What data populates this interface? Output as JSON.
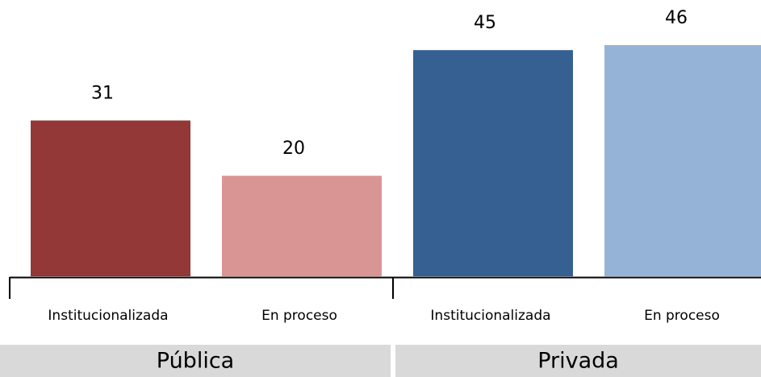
{
  "chart_data": {
    "type": "bar",
    "categories": [
      "Institucionalizada",
      "En proceso",
      "Institucionalizada",
      "En proceso"
    ],
    "values": [
      31,
      20,
      45,
      46
    ],
    "colors": [
      "#943737",
      "#d99594",
      "#366092",
      "#95b3d7"
    ],
    "groups": [
      "Pública",
      "Privada"
    ],
    "ylim": [
      0,
      50
    ]
  }
}
